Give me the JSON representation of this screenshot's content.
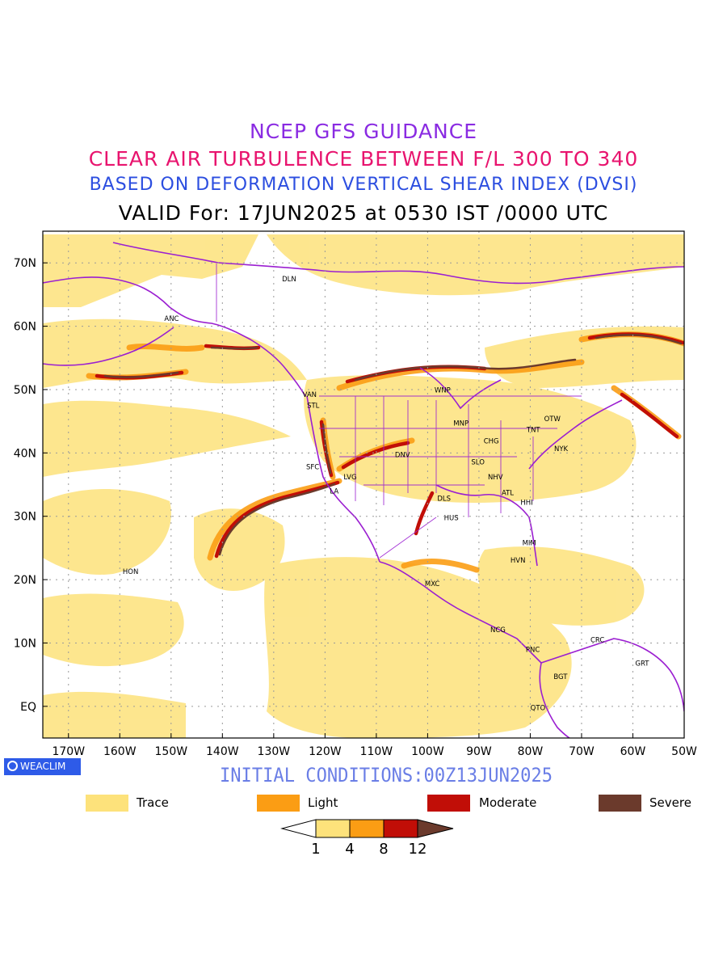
{
  "title_lines": {
    "line1": "NCEP GFS GUIDANCE",
    "line2": "CLEAR AIR TURBULENCE BETWEEN F/L 300 TO 340",
    "line3": "BASED ON DEFORMATION VERTICAL SHEAR INDEX (DVSI)",
    "line4": "VALID For: 17JUN2025 at 0530 IST /0000 UTC"
  },
  "map": {
    "lon_range": [
      -175,
      -50
    ],
    "lat_range": [
      -5,
      75
    ],
    "lat_ticks": [
      "70N",
      "60N",
      "50N",
      "40N",
      "30N",
      "20N",
      "10N",
      "EQ"
    ],
    "lon_ticks": [
      "170W",
      "160W",
      "150W",
      "140W",
      "130W",
      "120W",
      "110W",
      "100W",
      "90W",
      "80W",
      "70W",
      "60W",
      "50W"
    ],
    "coastline_color": "#9b1fd1",
    "cities": [
      {
        "code": "DLN",
        "lon": -127,
        "lat": 67.5
      },
      {
        "code": "ANC",
        "lon": -149.9,
        "lat": 61.2
      },
      {
        "code": "VAN",
        "lon": -123,
        "lat": 49.2
      },
      {
        "code": "STL",
        "lon": -122.3,
        "lat": 47.5
      },
      {
        "code": "WNP",
        "lon": -97.1,
        "lat": 49.9
      },
      {
        "code": "MNP",
        "lon": -93.5,
        "lat": 44.7
      },
      {
        "code": "OTW",
        "lon": -75.7,
        "lat": 45.4
      },
      {
        "code": "TNT",
        "lon": -79.4,
        "lat": 43.7
      },
      {
        "code": "CHG",
        "lon": -87.6,
        "lat": 41.9
      },
      {
        "code": "NYK",
        "lon": -74,
        "lat": 40.7
      },
      {
        "code": "DNV",
        "lon": -104.9,
        "lat": 39.7
      },
      {
        "code": "SFC",
        "lon": -122.4,
        "lat": 37.8
      },
      {
        "code": "LVG",
        "lon": -115.1,
        "lat": 36.2
      },
      {
        "code": "SLO",
        "lon": -90.2,
        "lat": 38.6
      },
      {
        "code": "NHV",
        "lon": -86.8,
        "lat": 36.2
      },
      {
        "code": "LA",
        "lon": -118.2,
        "lat": 34
      },
      {
        "code": "ATL",
        "lon": -84.4,
        "lat": 33.7
      },
      {
        "code": "DLS",
        "lon": -96.8,
        "lat": 32.8
      },
      {
        "code": "HHI",
        "lon": -80.7,
        "lat": 32.2
      },
      {
        "code": "HUS",
        "lon": -95.4,
        "lat": 29.8
      },
      {
        "code": "MIM",
        "lon": -80.2,
        "lat": 25.8
      },
      {
        "code": "HVN",
        "lon": -82.4,
        "lat": 23.1
      },
      {
        "code": "HON",
        "lon": -157.9,
        "lat": 21.3
      },
      {
        "code": "MXC",
        "lon": -99.1,
        "lat": 19.4
      },
      {
        "code": "NCG",
        "lon": -86.3,
        "lat": 12.1
      },
      {
        "code": "CRC",
        "lon": -66.9,
        "lat": 10.5
      },
      {
        "code": "PNC",
        "lon": -79.5,
        "lat": 9
      },
      {
        "code": "GRT",
        "lon": -58.2,
        "lat": 6.8
      },
      {
        "code": "BGT",
        "lon": -74.1,
        "lat": 4.7
      },
      {
        "code": "QTO",
        "lon": -78.5,
        "lat": -0.2
      }
    ]
  },
  "initial_conditions": "INITIAL CONDITIONS:00Z13JUN2025",
  "brand": "WEACLIM",
  "legend": [
    {
      "label": "Trace",
      "color": "#fde27b"
    },
    {
      "label": "Light",
      "color": "#fb9d14"
    },
    {
      "label": "Moderate",
      "color": "#c10e07"
    },
    {
      "label": "Severe",
      "color": "#6b3a2c"
    }
  ],
  "colorbar": {
    "labels": [
      "1",
      "4",
      "8",
      "12"
    ],
    "colors": [
      "#ffffff",
      "#fde27b",
      "#fb9d14",
      "#c10e07",
      "#6b3a2c"
    ]
  }
}
